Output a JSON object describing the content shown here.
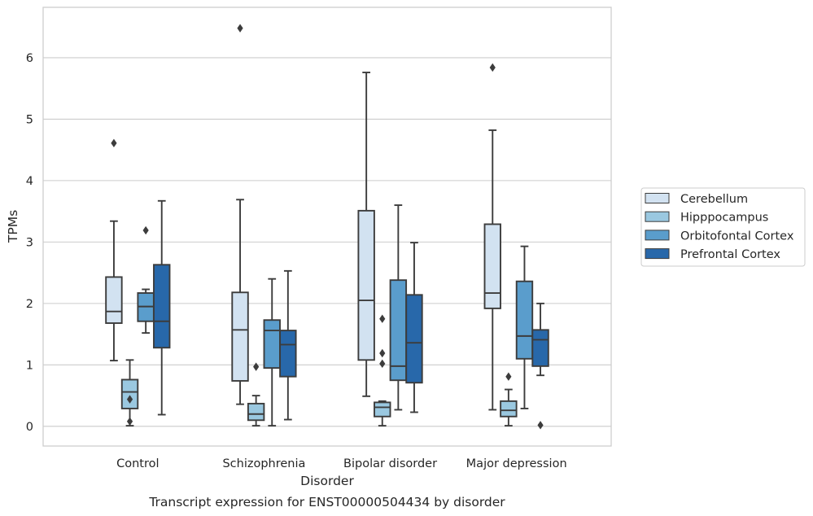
{
  "chart_data": {
    "type": "box",
    "title": "",
    "caption": "Transcript expression for ENST00000504434 by disorder",
    "xlabel": "Disorder",
    "ylabel": "TPMs",
    "ylim": [
      -0.32,
      6.82
    ],
    "yticks": [
      0,
      1,
      2,
      3,
      4,
      5,
      6
    ],
    "grid": "horizontal",
    "legend_position": "right",
    "categories": [
      "Control",
      "Schizophrenia",
      "Bipolar disorder",
      "Major depression"
    ],
    "series": [
      {
        "name": "Cerebellum",
        "color": "#d2e2f1",
        "boxes": [
          {
            "whislo": 1.07,
            "q1": 1.68,
            "med": 1.87,
            "q3": 2.43,
            "whishi": 3.34,
            "fliers": [
              4.61
            ]
          },
          {
            "whislo": 0.36,
            "q1": 0.74,
            "med": 1.57,
            "q3": 2.18,
            "whishi": 3.69,
            "fliers": [
              6.48
            ]
          },
          {
            "whislo": 0.49,
            "q1": 1.08,
            "med": 2.05,
            "q3": 3.51,
            "whishi": 5.76,
            "fliers": []
          },
          {
            "whislo": 0.27,
            "q1": 1.92,
            "med": 2.17,
            "q3": 3.29,
            "whishi": 4.82,
            "fliers": [
              5.84
            ]
          }
        ]
      },
      {
        "name": "Hipppocampus",
        "color": "#9ac8e0",
        "boxes": [
          {
            "whislo": 0.01,
            "q1": 0.29,
            "med": 0.56,
            "q3": 0.76,
            "whishi": 1.08,
            "fliers": [
              0.44,
              0.08
            ]
          },
          {
            "whislo": 0.01,
            "q1": 0.1,
            "med": 0.2,
            "q3": 0.37,
            "whishi": 0.5,
            "fliers": [
              0.97
            ]
          },
          {
            "whislo": 0.01,
            "q1": 0.16,
            "med": 0.31,
            "q3": 0.39,
            "whishi": 0.41,
            "fliers": [
              1.75,
              1.19,
              1.02
            ]
          },
          {
            "whislo": 0.01,
            "q1": 0.16,
            "med": 0.26,
            "q3": 0.41,
            "whishi": 0.6,
            "fliers": [
              0.81
            ]
          }
        ]
      },
      {
        "name": "Orbitofontal Cortex",
        "color": "#5a9dcc",
        "boxes": [
          {
            "whislo": 1.52,
            "q1": 1.71,
            "med": 1.95,
            "q3": 2.17,
            "whishi": 2.23,
            "fliers": [
              3.19
            ]
          },
          {
            "whislo": 0.01,
            "q1": 0.95,
            "med": 1.56,
            "q3": 1.73,
            "whishi": 2.4,
            "fliers": []
          },
          {
            "whislo": 0.27,
            "q1": 0.75,
            "med": 0.98,
            "q3": 2.38,
            "whishi": 3.6,
            "fliers": []
          },
          {
            "whislo": 0.29,
            "q1": 1.1,
            "med": 1.47,
            "q3": 2.36,
            "whishi": 2.93,
            "fliers": []
          }
        ]
      },
      {
        "name": "Prefrontal Cortex",
        "color": "#2868aa",
        "boxes": [
          {
            "whislo": 0.19,
            "q1": 1.28,
            "med": 1.71,
            "q3": 2.63,
            "whishi": 3.67,
            "fliers": []
          },
          {
            "whislo": 0.11,
            "q1": 0.81,
            "med": 1.33,
            "q3": 1.56,
            "whishi": 2.53,
            "fliers": []
          },
          {
            "whislo": 0.23,
            "q1": 0.71,
            "med": 1.36,
            "q3": 2.14,
            "whishi": 2.99,
            "fliers": []
          },
          {
            "whislo": 0.83,
            "q1": 0.98,
            "med": 1.41,
            "q3": 1.57,
            "whishi": 2.0,
            "fliers": [
              0.02
            ]
          }
        ]
      }
    ],
    "style": {
      "line_color": "#3c3c3c",
      "grid_color": "#cccccc",
      "frame_color": "#cccccc"
    }
  }
}
